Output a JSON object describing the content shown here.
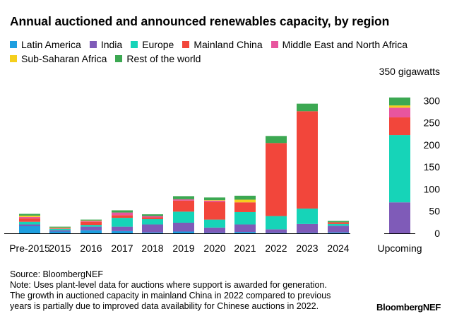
{
  "title": "Annual auctioned and announced renewables capacity, by region",
  "unit_label": "350 gigawatts",
  "footer": {
    "source": "Source: BloombergNEF",
    "note_line1": "Note: Uses plant-level data for auctions where support is awarded for generation.",
    "note_line2": "The growth in auctioned capacity in mainland China in 2022 compared to previous",
    "note_line3": "years is partially due to improved data availability for Chinese auctions in 2022."
  },
  "brand": "BloombergNEF",
  "chart_data": {
    "type": "bar",
    "stacked": true,
    "categories": [
      "Pre-2015",
      "2015",
      "2016",
      "2017",
      "2018",
      "2019",
      "2020",
      "2021",
      "2022",
      "2023",
      "2024",
      "Upcoming"
    ],
    "series": [
      {
        "name": "Latin America",
        "color": "#1e9fe0",
        "values": [
          16,
          4,
          7,
          5,
          2,
          4,
          1,
          3,
          1,
          1,
          2,
          0
        ]
      },
      {
        "name": "India",
        "color": "#7f5bb8",
        "values": [
          4,
          3,
          8,
          10,
          18,
          20,
          12,
          17,
          8,
          20,
          15,
          70
        ]
      },
      {
        "name": "Europe",
        "color": "#16d4b8",
        "values": [
          6,
          3,
          4,
          20,
          12,
          25,
          18,
          28,
          30,
          35,
          4,
          152
        ]
      },
      {
        "name": "Mainland China",
        "color": "#f2463b",
        "values": [
          8,
          1,
          7,
          6,
          4,
          25,
          40,
          22,
          165,
          220,
          4,
          40
        ]
      },
      {
        "name": "Middle East and North Africa",
        "color": "#e8559e",
        "values": [
          3,
          1,
          2,
          6,
          3,
          3,
          3,
          0,
          0,
          0,
          0,
          22
        ]
      },
      {
        "name": "Sub-Saharan Africa",
        "color": "#f5cf1d",
        "values": [
          3,
          1,
          1,
          0,
          0,
          0,
          1,
          6,
          0,
          0,
          0,
          5
        ]
      },
      {
        "name": "Rest of the world",
        "color": "#3ca852",
        "values": [
          4,
          2,
          2,
          5,
          4,
          7,
          6,
          9,
          16,
          17,
          3,
          18
        ]
      }
    ],
    "yticks": [
      0,
      50,
      100,
      150,
      200,
      250,
      300
    ],
    "ylim": [
      0,
      330
    ],
    "grid": false,
    "legend_position": "top"
  }
}
